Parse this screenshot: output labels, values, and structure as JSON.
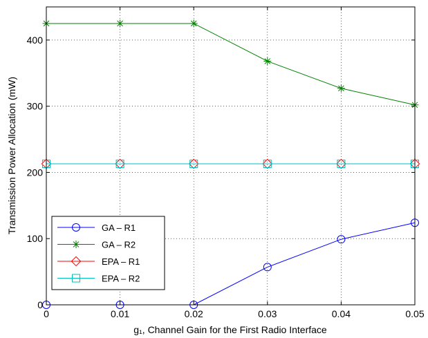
{
  "chart_data": {
    "type": "line",
    "title": "",
    "xlabel": "g₁, Channel Gain for the First Radio Interface",
    "ylabel": "Transmission Power Allocation (mW)",
    "xlim": [
      0,
      0.05
    ],
    "ylim": [
      0,
      450
    ],
    "x": [
      0,
      0.01,
      0.02,
      0.03,
      0.04,
      0.05
    ],
    "x_tick_labels": [
      "0",
      "0.01",
      "0.02",
      "0.03",
      "0.04",
      "0.05"
    ],
    "y_ticks": [
      0,
      100,
      200,
      300,
      400
    ],
    "y_tick_labels": [
      "0",
      "100",
      "200",
      "300",
      "400"
    ],
    "grid": true,
    "legend_position": "bottom-left",
    "series": [
      {
        "name": "GA – R1",
        "marker": "circle",
        "color": "#0000ff",
        "values": [
          0,
          0,
          0,
          57,
          99,
          124
        ]
      },
      {
        "name": "GA – R2",
        "marker": "asterisk",
        "color": "#008000",
        "values": [
          425,
          425,
          425,
          368,
          327,
          302
        ]
      },
      {
        "name": "EPA – R1",
        "marker": "diamond",
        "color": "#ff0000",
        "values": [
          213,
          213,
          213,
          213,
          213,
          213
        ]
      },
      {
        "name": "EPA – R2",
        "marker": "square",
        "color": "#00bfbf",
        "values": [
          213,
          213,
          213,
          213,
          213,
          213
        ]
      }
    ]
  }
}
